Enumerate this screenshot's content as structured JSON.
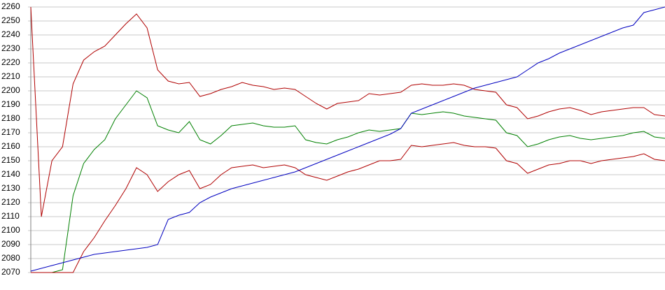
{
  "chart_data": {
    "type": "line",
    "ylim": [
      2070,
      2260
    ],
    "yticks": [
      2070,
      2080,
      2090,
      2100,
      2110,
      2120,
      2130,
      2140,
      2150,
      2160,
      2170,
      2180,
      2190,
      2200,
      2210,
      2220,
      2230,
      2240,
      2250,
      2260
    ],
    "grid": true,
    "series": [
      {
        "color": "#b00000",
        "values": [
          2260,
          2110,
          2150,
          2160,
          2205,
          2222,
          2228,
          2232,
          2240,
          2248,
          2255,
          2245,
          2215,
          2207,
          2205,
          2206,
          2196,
          2198,
          2201,
          2203,
          2206,
          2204,
          2203,
          2201,
          2202,
          2201,
          2196,
          2191,
          2187,
          2191,
          2192,
          2193,
          2198,
          2197,
          2198,
          2199,
          2204,
          2205,
          2204,
          2204,
          2205,
          2204,
          2201,
          2200,
          2199,
          2190,
          2188,
          2180,
          2182,
          2185,
          2187,
          2188,
          2186,
          2183,
          2185,
          2186,
          2187,
          2188,
          2188,
          2183,
          2182
        ]
      },
      {
        "color": "#008000",
        "values": [
          2070,
          2070,
          2070,
          2072,
          2125,
          2148,
          2158,
          2165,
          2180,
          2190,
          2200,
          2195,
          2175,
          2172,
          2170,
          2178,
          2165,
          2162,
          2168,
          2175,
          2176,
          2177,
          2175,
          2174,
          2174,
          2175,
          2165,
          2163,
          2162,
          2165,
          2167,
          2170,
          2172,
          2171,
          2172,
          2173,
          2184,
          2183,
          2184,
          2185,
          2184,
          2182,
          2181,
          2180,
          2179,
          2170,
          2168,
          2160,
          2162,
          2165,
          2167,
          2168,
          2166,
          2165,
          2166,
          2167,
          2168,
          2170,
          2171,
          2167,
          2166
        ]
      },
      {
        "color": "#b00000",
        "values": [
          2070,
          2070,
          2070,
          2070,
          2070,
          2085,
          2095,
          2107,
          2118,
          2130,
          2145,
          2140,
          2128,
          2135,
          2140,
          2143,
          2130,
          2133,
          2140,
          2145,
          2146,
          2147,
          2145,
          2146,
          2147,
          2145,
          2140,
          2138,
          2136,
          2139,
          2142,
          2144,
          2147,
          2150,
          2150,
          2151,
          2161,
          2160,
          2161,
          2162,
          2163,
          2161,
          2160,
          2160,
          2159,
          2150,
          2148,
          2141,
          2144,
          2147,
          2148,
          2150,
          2150,
          2148,
          2150,
          2151,
          2152,
          2153,
          2155,
          2151,
          2150
        ]
      },
      {
        "color": "#0000c0",
        "values": [
          2071,
          2073,
          2075,
          2077,
          2079,
          2081,
          2083,
          2084,
          2085,
          2086,
          2087,
          2088,
          2090,
          2108,
          2111,
          2113,
          2120,
          2124,
          2127,
          2130,
          2132,
          2134,
          2136,
          2138,
          2140,
          2142,
          2145,
          2148,
          2151,
          2154,
          2157,
          2160,
          2163,
          2166,
          2169,
          2173,
          2184,
          2187,
          2190,
          2193,
          2196,
          2199,
          2202,
          2204,
          2206,
          2208,
          2210,
          2215,
          2220,
          2223,
          2227,
          2230,
          2233,
          2236,
          2239,
          2242,
          2245,
          2247,
          2256,
          2258,
          2260
        ]
      }
    ]
  }
}
